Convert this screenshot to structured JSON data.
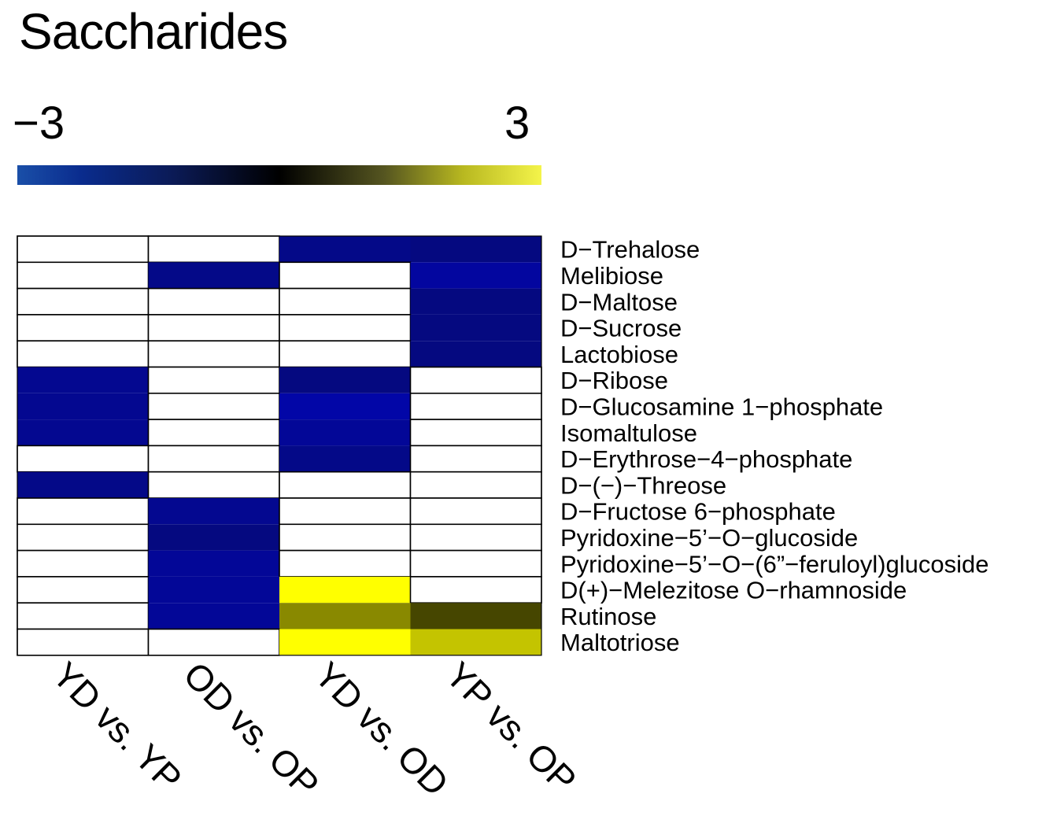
{
  "chart_data": {
    "type": "heatmap",
    "title": "Saccharides",
    "color_scale": {
      "min": -3,
      "max": 3,
      "min_label": "−3",
      "max_label": "3",
      "low_color": "#1a4fa8",
      "mid_color": "#000000",
      "high_color": "#f0f040",
      "na_color": "#ffffff"
    },
    "columns": [
      "YD vs. YP",
      "OD vs. OP",
      "YD vs. OD",
      "YP vs. OP"
    ],
    "rows": [
      "D−Trehalose",
      "Melibiose",
      "D−Maltose",
      "D−Sucrose",
      "Lactobiose",
      "D−Ribose",
      "D−Glucosamine 1−phosphate",
      "Isomaltulose",
      "D−Erythrose−4−phosphate",
      "D−(−)−Threose",
      "D−Fructose 6−phosphate",
      "Pyridoxine−5’−O−glucoside",
      "Pyridoxine−5’−O−(6”−feruloyl)glucoside",
      "D(+)−Melezitose O−rhamnoside",
      "Rutinose",
      "Maltotriose"
    ],
    "values": [
      [
        null,
        null,
        -1.2,
        -1.1
      ],
      [
        null,
        -1.2,
        null,
        -1.5
      ],
      [
        null,
        null,
        null,
        -1.1
      ],
      [
        null,
        null,
        null,
        -1.1
      ],
      [
        null,
        null,
        null,
        -1.1
      ],
      [
        -1.3,
        null,
        -1.1,
        null
      ],
      [
        -1.3,
        null,
        -1.6,
        null
      ],
      [
        -1.3,
        null,
        -1.4,
        null
      ],
      [
        null,
        null,
        -1.2,
        null
      ],
      [
        -1.2,
        null,
        null,
        null
      ],
      [
        null,
        -1.3,
        null,
        null
      ],
      [
        null,
        -1.1,
        null,
        null
      ],
      [
        null,
        -1.4,
        null,
        null
      ],
      [
        null,
        -1.4,
        3.0,
        null
      ],
      [
        null,
        -1.4,
        1.6,
        0.8
      ],
      [
        null,
        null,
        3.0,
        2.3
      ]
    ]
  }
}
